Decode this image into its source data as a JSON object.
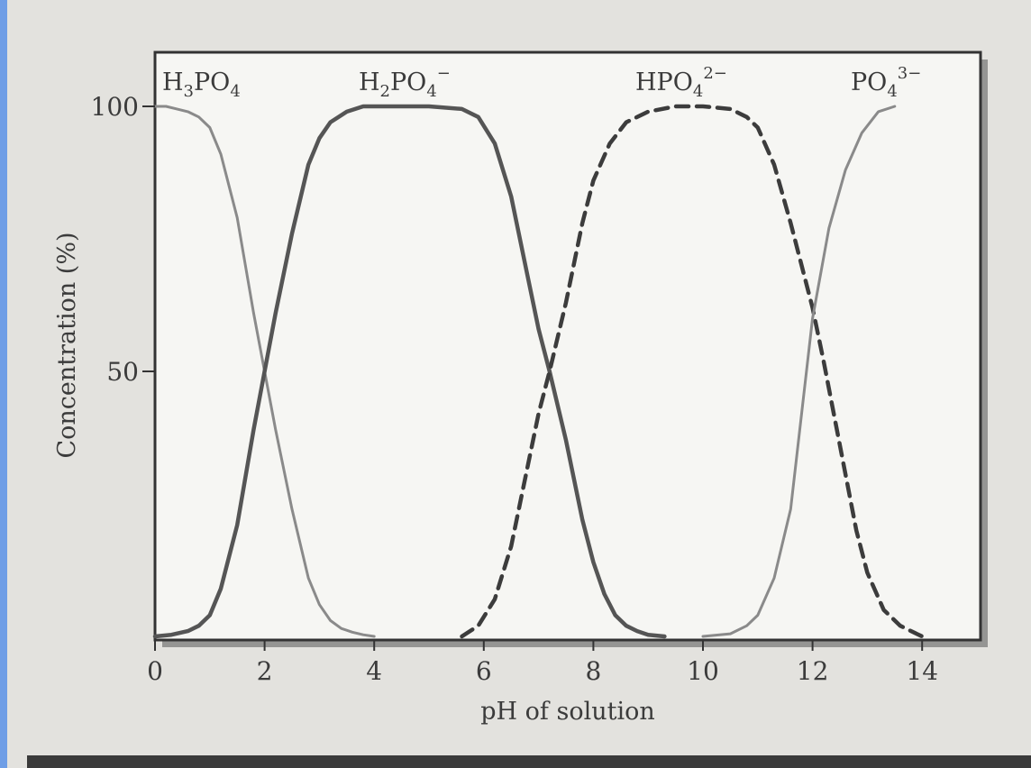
{
  "colors": {
    "page_background": "#6f9ee6",
    "figure_background": "#e3e2de",
    "plot_background": "#f6f6f3",
    "axis": "#333333",
    "text": "#3b3b3b",
    "series_colors": [
      "#8a8a8a",
      "#555555",
      "#3c3c3c",
      "#8a8a8a"
    ]
  },
  "chart_data": {
    "type": "line",
    "title": "",
    "xlabel": "pH of solution",
    "ylabel": "Concentration (%)",
    "xlim": [
      0,
      14.5
    ],
    "ylim": [
      0,
      100
    ],
    "xticks": [
      0,
      2,
      4,
      6,
      8,
      10,
      12,
      14
    ],
    "yticks": [
      50,
      100
    ],
    "grid": false,
    "series": [
      {
        "name": "H3PO4",
        "label_parts": {
          "base": "H",
          "sub1": "3",
          "mid": "PO",
          "sub2": "4",
          "sup": ""
        },
        "style": "solid",
        "x": [
          0.0,
          0.2,
          0.4,
          0.6,
          0.8,
          1.0,
          1.2,
          1.5,
          1.8,
          2.0,
          2.2,
          2.5,
          2.8,
          3.0,
          3.2,
          3.4,
          3.6,
          3.8,
          4.0
        ],
        "y": [
          100,
          100,
          99.5,
          99,
          98,
          96,
          91,
          79,
          61,
          50,
          39,
          24,
          11,
          6,
          3,
          1.5,
          0.8,
          0.3,
          0
        ]
      },
      {
        "name": "H2PO4-",
        "label_parts": {
          "base": "H",
          "sub1": "2",
          "mid": "PO",
          "sub2": "4",
          "sup": "−"
        },
        "style": "solid",
        "x": [
          0.0,
          0.3,
          0.6,
          0.8,
          1.0,
          1.2,
          1.5,
          1.8,
          2.0,
          2.2,
          2.5,
          2.8,
          3.0,
          3.2,
          3.5,
          3.8,
          4.2,
          5.0,
          5.6,
          5.9,
          6.2,
          6.5,
          6.8,
          7.0,
          7.2,
          7.5,
          7.8,
          8.0,
          8.2,
          8.4,
          8.6,
          8.8,
          9.0,
          9.3
        ],
        "y": [
          0,
          0.3,
          1,
          2,
          4,
          9,
          21,
          39,
          50,
          61,
          76,
          89,
          94,
          97,
          99,
          100,
          100,
          100,
          99.5,
          98,
          93,
          83,
          68,
          58,
          50,
          37,
          22,
          14,
          8,
          4,
          2,
          1,
          0.3,
          0
        ]
      },
      {
        "name": "HPO42-",
        "label_parts": {
          "base": "H",
          "sub1": "",
          "mid": "PO",
          "sub2": "4",
          "sup": "2−"
        },
        "style": "dashed",
        "x": [
          5.6,
          5.9,
          6.2,
          6.5,
          6.8,
          7.0,
          7.2,
          7.5,
          7.8,
          8.0,
          8.3,
          8.6,
          9.0,
          9.5,
          10.0,
          10.5,
          10.8,
          11.0,
          11.3,
          11.6,
          12.0,
          12.2,
          12.5,
          12.8,
          13.0,
          13.3,
          13.6,
          13.9,
          14.0
        ],
        "y": [
          0,
          2,
          7,
          17,
          32,
          42,
          50,
          63,
          78,
          86,
          93,
          97,
          99,
          100,
          100,
          99.5,
          98,
          96,
          89,
          78,
          62,
          52,
          36,
          20,
          12,
          5,
          2,
          0.5,
          0
        ]
      },
      {
        "name": "PO43-",
        "label_parts": {
          "base": "",
          "sub1": "",
          "mid": "PO",
          "sub2": "4",
          "sup": "3−"
        },
        "style": "solid",
        "x": [
          10.0,
          10.5,
          10.8,
          11.0,
          11.3,
          11.6,
          12.0,
          12.3,
          12.6,
          12.9,
          13.2,
          13.5
        ],
        "y": [
          0,
          0.5,
          2,
          4,
          11,
          24,
          60,
          77,
          88,
          95,
          99,
          100
        ]
      }
    ]
  }
}
